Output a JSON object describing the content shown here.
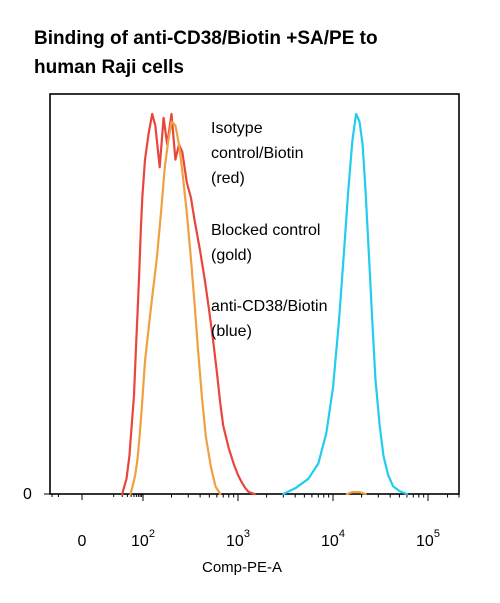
{
  "chart_data": {
    "type": "line",
    "title_line1": "Binding of anti-CD38/Biotin +SA/PE to",
    "title_line2": "human Raji cells",
    "xlabel": "Comp-PE-A",
    "ylabel": "",
    "x_scale": "biexponential",
    "xlim": [
      -25,
      300000
    ],
    "ylim": [
      0,
      100
    ],
    "y_tick_labels": [
      {
        "value": 0,
        "label": "0"
      }
    ],
    "x_tick_labels": [
      {
        "value": 0,
        "base": "0",
        "exp": ""
      },
      {
        "value": 100,
        "base": "10",
        "exp": "2"
      },
      {
        "value": 1000,
        "base": "10",
        "exp": "3"
      },
      {
        "value": 10000,
        "base": "10",
        "exp": "4"
      },
      {
        "value": 100000,
        "base": "10",
        "exp": "5"
      }
    ],
    "grid": false,
    "legend": "none",
    "annotations": [
      {
        "lines": [
          "Isotype",
          "control/Biotin",
          "(red)"
        ]
      },
      {
        "lines": [
          "Blocked control",
          "(gold)"
        ]
      },
      {
        "lines": [
          "anti-CD38/Biotin",
          "(blue)"
        ]
      }
    ],
    "series": [
      {
        "color": "#e8463c",
        "x": [
          20,
          28,
          35,
          42,
          50,
          58,
          66,
          75,
          85,
          95,
          105,
          115,
          125,
          135,
          150,
          165,
          180,
          200,
          220,
          240,
          260,
          290,
          320,
          350,
          400,
          450,
          500,
          550,
          600,
          650,
          700,
          800,
          900,
          1000,
          1100,
          1200,
          1300,
          1500
        ],
        "y": [
          0,
          4,
          10,
          18,
          26,
          38,
          48,
          58,
          70,
          78,
          88,
          95,
          100,
          97,
          86,
          99,
          92,
          100,
          88,
          92,
          90,
          82,
          78,
          72,
          64,
          56,
          48,
          40,
          32,
          24,
          18,
          12,
          8,
          5,
          3,
          1.5,
          0.5,
          0
        ]
      },
      {
        "color": "#f0a040",
        "x": [
          38,
          45,
          55,
          65,
          75,
          90,
          105,
          120,
          140,
          155,
          170,
          185,
          200,
          220,
          240,
          260,
          290,
          320,
          350,
          380,
          420,
          460,
          520,
          580,
          650
        ],
        "y": [
          0,
          2,
          5,
          9,
          14,
          22,
          35,
          48,
          62,
          74,
          86,
          93,
          98,
          97,
          92,
          85,
          74,
          62,
          50,
          38,
          25,
          15,
          7,
          2,
          0
        ]
      },
      {
        "color": "#22ccee",
        "x": [
          3000,
          4000,
          5500,
          7000,
          8500,
          10000,
          11500,
          13000,
          14500,
          16000,
          17500,
          19000,
          20500,
          22000,
          24000,
          26000,
          28000,
          31000,
          34000,
          38000,
          43000,
          50000,
          60000
        ],
        "y": [
          0,
          1.5,
          4,
          8,
          16,
          28,
          45,
          63,
          80,
          93,
          100,
          98,
          92,
          80,
          62,
          45,
          30,
          18,
          10,
          5,
          2,
          0.8,
          0
        ]
      },
      {
        "color": "#f0a040",
        "x": [
          14000,
          16000,
          19000,
          22000
        ],
        "y": [
          0,
          0.5,
          0.5,
          0
        ]
      }
    ]
  }
}
